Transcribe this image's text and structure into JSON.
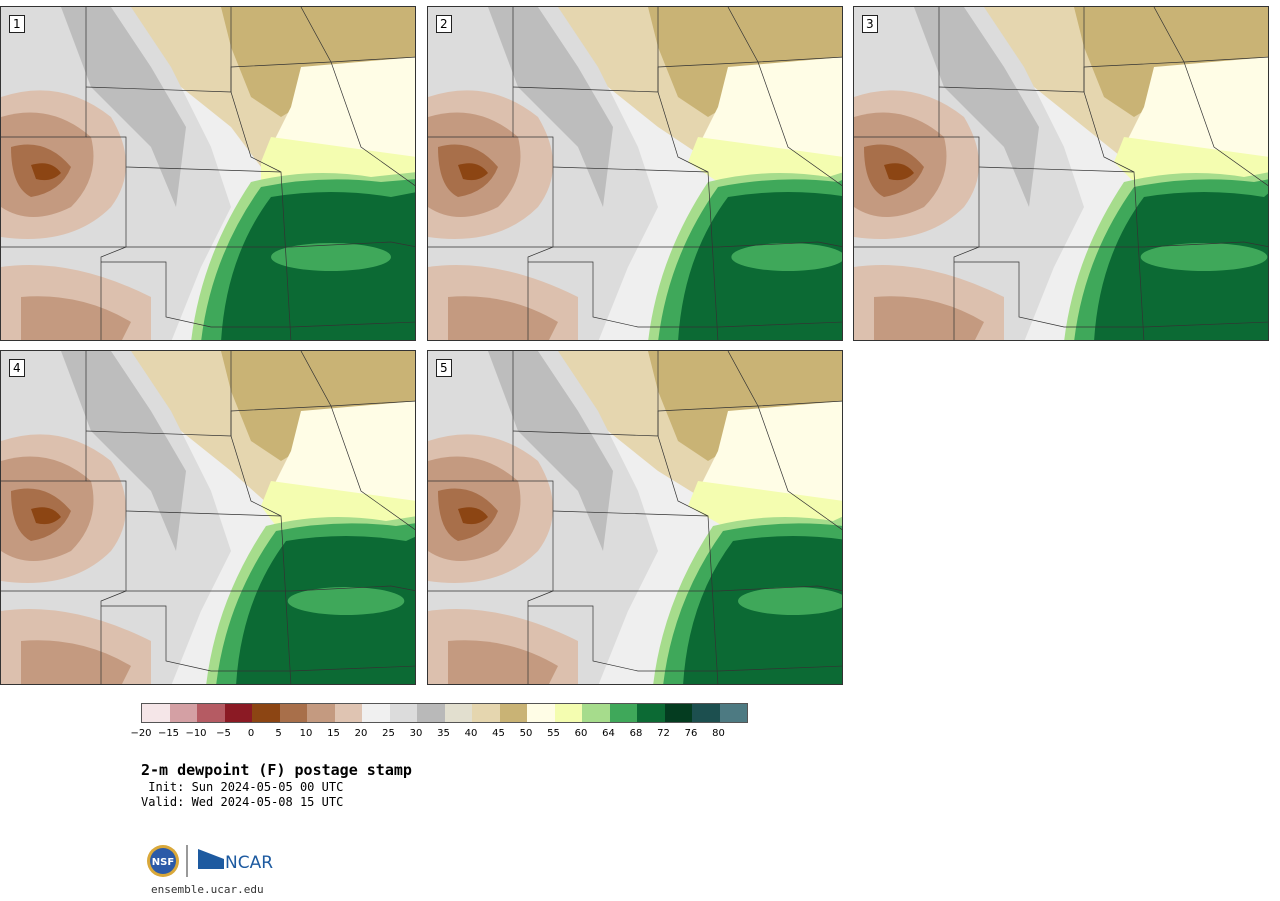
{
  "panels": [
    {
      "label": "1"
    },
    {
      "label": "2"
    },
    {
      "label": "3"
    },
    {
      "label": "4"
    },
    {
      "label": "5"
    }
  ],
  "colorbar": {
    "colors": [
      "#f5e6e8",
      "#d4a0a4",
      "#b55b63",
      "#8b1a24",
      "#8c4513",
      "#a86f4a",
      "#c49a80",
      "#dfc4b2",
      "#f0f0f0",
      "#dcdcdc",
      "#b9b9b9",
      "#e2dfcf",
      "#e5d6af",
      "#c9b375",
      "#fffde6",
      "#f4fdb0",
      "#a6dc8c",
      "#3fa85a",
      "#0c6a34",
      "#043c20",
      "#1c4f4f",
      "#4d7a82"
    ],
    "tick_labels": [
      "-20",
      "-15",
      "-10",
      "-5",
      "0",
      "5",
      "10",
      "15",
      "20",
      "25",
      "30",
      "35",
      "40",
      "45",
      "50",
      "55",
      "60",
      "64",
      "68",
      "72",
      "76",
      "80"
    ]
  },
  "title": "2-m dewpoint (F) postage stamp",
  "init": " Init: Sun 2024-05-05 00 UTC",
  "valid": "Valid: Wed 2024-05-08 15 UTC",
  "logo": {
    "nsf": "NSF",
    "ncar": "NCAR"
  },
  "url": "ensemble.ucar.edu"
}
